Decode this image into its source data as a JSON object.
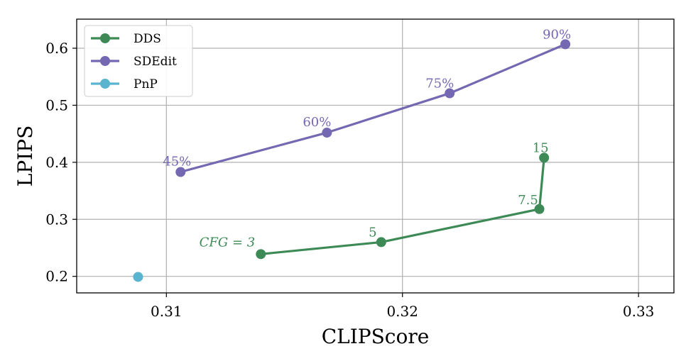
{
  "chart_data": {
    "type": "line",
    "title": "",
    "xlabel": "CLIPScore",
    "ylabel": "LPIPS",
    "xlim": [
      0.3062,
      0.3315
    ],
    "ylim": [
      0.171,
      0.651
    ],
    "xticks": [
      0.31,
      0.32,
      0.33
    ],
    "xtick_labels": [
      "0.31",
      "0.32",
      "0.33"
    ],
    "yticks": [
      0.2,
      0.3,
      0.4,
      0.5,
      0.6
    ],
    "ytick_labels": [
      "0.2",
      "0.3",
      "0.4",
      "0.5",
      "0.6"
    ],
    "grid": true,
    "legend_position": "top-left",
    "series": [
      {
        "name": "DDS",
        "color": "#3d8a57",
        "x": [
          0.314,
          0.3191,
          0.3258,
          0.326
        ],
        "y": [
          0.239,
          0.26,
          0.318,
          0.408
        ],
        "labels": [
          "CFG = 3",
          "5",
          "7.5",
          "15"
        ]
      },
      {
        "name": "SDEdit",
        "color": "#7468b2",
        "x": [
          0.3106,
          0.3168,
          0.322,
          0.3269
        ],
        "y": [
          0.383,
          0.452,
          0.521,
          0.607
        ],
        "labels": [
          "45%",
          "60%",
          "75%",
          "90%"
        ]
      },
      {
        "name": "PnP",
        "color": "#5ab4cf",
        "x": [
          0.3088
        ],
        "y": [
          0.199
        ],
        "labels": []
      }
    ]
  }
}
